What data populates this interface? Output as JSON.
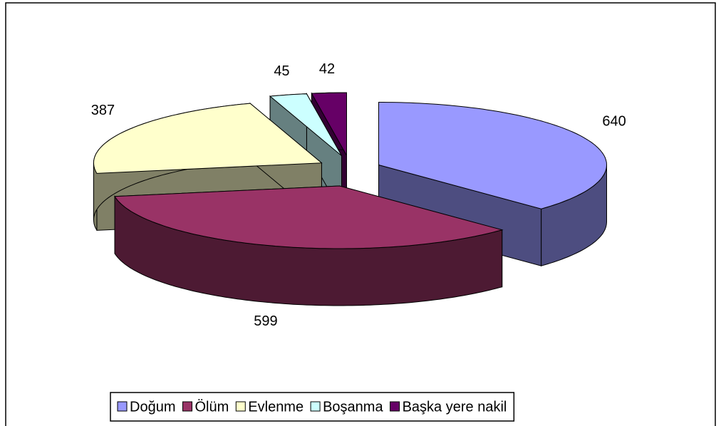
{
  "chart_data": {
    "type": "pie3d",
    "categories": [
      "Doğum",
      "Ölüm",
      "Evlenme",
      "Boşanma",
      "Başka yere nakil"
    ],
    "values": [
      640,
      599,
      387,
      45,
      42
    ],
    "colors": [
      "#9999ff",
      "#993366",
      "#ffffcc",
      "#ccffff",
      "#660066"
    ],
    "legend": "bottom"
  }
}
